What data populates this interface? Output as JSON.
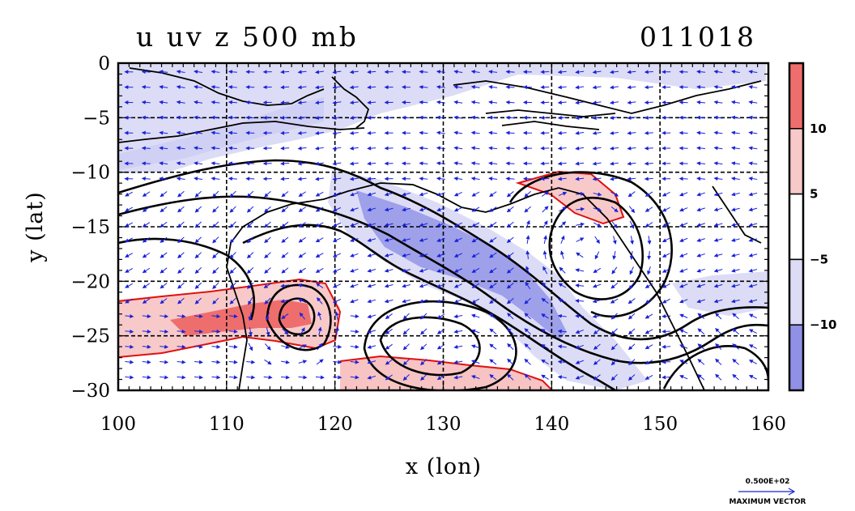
{
  "title": {
    "left": "u uv z 500 mb",
    "right": "011018"
  },
  "chart_data": {
    "type": "heatmap",
    "title": "u uv z 500 mb",
    "date_label": "011018",
    "xlabel": "x (lon)",
    "ylabel": "y (lat)",
    "xlim": [
      100,
      160
    ],
    "ylim": [
      -30,
      0
    ],
    "x_ticks": [
      100,
      110,
      120,
      130,
      140,
      150,
      160
    ],
    "y_ticks": [
      0,
      -5,
      -10,
      -15,
      -20,
      -25,
      -30
    ],
    "grid": true,
    "fields": [
      "u (shaded + red contours)",
      "uv (wind vectors)",
      "z (black contours)"
    ],
    "colorbar": {
      "labels": [
        "10",
        "5",
        "-5",
        "-10"
      ],
      "bins": [
        {
          "range": ">10",
          "color": "#ee6e6e"
        },
        {
          "range": "5 to 10",
          "color": "#f8c9c9"
        },
        {
          "range": "-5 to 5",
          "color": "#ffffff"
        },
        {
          "range": "-10 to -5",
          "color": "#dcdcf6"
        },
        {
          "range": "<-10",
          "color": "#8f90e6"
        }
      ]
    },
    "vector_reference": {
      "value": "0.500E+02",
      "label": "MAXIMUM VECTOR"
    }
  },
  "colors": {
    "coast": "#000000",
    "vector": "#1a22d8",
    "positive_contour": "#e01010",
    "negative_fill": "#b9baf0",
    "strong_negative_fill": "#8f90e6",
    "positive_fill": "#f7c3c3",
    "strong_positive_fill": "#ee6e6e"
  }
}
